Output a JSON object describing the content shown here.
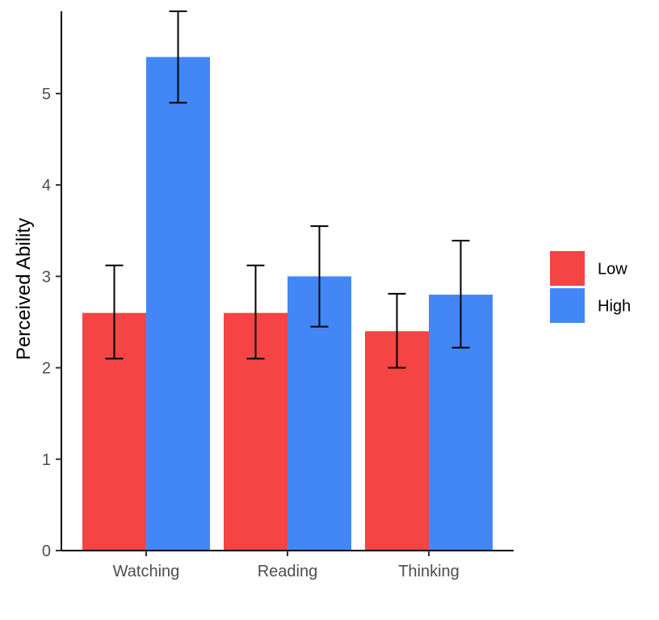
{
  "chart_data": {
    "type": "bar",
    "title": "",
    "xlabel": "",
    "ylabel": "Perceived Ability",
    "categories": [
      "Watching",
      "Reading",
      "Thinking"
    ],
    "series": [
      {
        "name": "Low",
        "color": "#F44444",
        "values": [
          2.6,
          2.6,
          2.4
        ],
        "error_low": [
          2.1,
          2.1,
          2.0
        ],
        "error_high": [
          3.12,
          3.12,
          2.81
        ]
      },
      {
        "name": "High",
        "color": "#4287F5",
        "values": [
          5.4,
          3.0,
          2.8
        ],
        "error_low": [
          4.9,
          2.45,
          2.22
        ],
        "error_high": [
          5.9,
          3.55,
          3.39
        ]
      }
    ],
    "ylim": [
      0,
      5.9
    ],
    "yticks": [
      0,
      1,
      2,
      3,
      4,
      5
    ],
    "grid": false,
    "legend_position": "right"
  }
}
